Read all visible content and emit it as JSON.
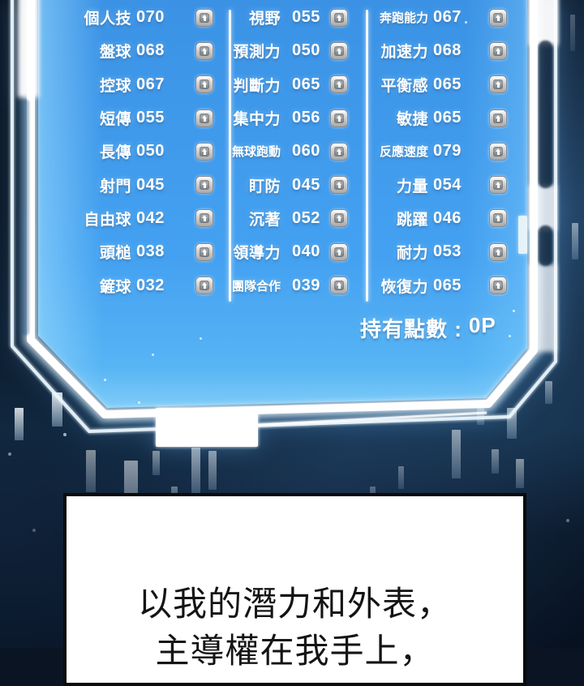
{
  "colors": {
    "panel_blue": "#42a0f0",
    "panel_deep_blue": "#3b92e5",
    "neon_white": "#ffffff",
    "background_navy": "#0b1b2e",
    "text_white": "#ffffff",
    "dialogue_text": "#141414"
  },
  "status_panel": {
    "columns": [
      {
        "name": "technical",
        "rows": [
          {
            "label": "個人技",
            "value": "070"
          },
          {
            "label": "盤球",
            "value": "068"
          },
          {
            "label": "控球",
            "value": "067"
          },
          {
            "label": "短傳",
            "value": "055"
          },
          {
            "label": "長傳",
            "value": "050"
          },
          {
            "label": "射門",
            "value": "045"
          },
          {
            "label": "自由球",
            "value": "042"
          },
          {
            "label": "頭槌",
            "value": "038"
          },
          {
            "label": "鏟球",
            "value": "032"
          }
        ]
      },
      {
        "name": "mental",
        "rows": [
          {
            "label": "視野",
            "value": "055"
          },
          {
            "label": "預測力",
            "value": "050"
          },
          {
            "label": "判斷力",
            "value": "065"
          },
          {
            "label": "集中力",
            "value": "056"
          },
          {
            "label": "無球跑動",
            "value": "060"
          },
          {
            "label": "盯防",
            "value": "045"
          },
          {
            "label": "沉著",
            "value": "052"
          },
          {
            "label": "領導力",
            "value": "040"
          },
          {
            "label": "團隊合作",
            "value": "039"
          }
        ]
      },
      {
        "name": "physical",
        "rows": [
          {
            "label": "奔跑能力",
            "value": "067"
          },
          {
            "label": "加速力",
            "value": "068"
          },
          {
            "label": "平衡感",
            "value": "065"
          },
          {
            "label": "敏捷",
            "value": "065"
          },
          {
            "label": "反應速度",
            "value": "079"
          },
          {
            "label": "力量",
            "value": "054"
          },
          {
            "label": "跳躍",
            "value": "046"
          },
          {
            "label": "耐力",
            "value": "053"
          },
          {
            "label": "恢復力",
            "value": "065"
          }
        ]
      }
    ],
    "points": {
      "label": "持有點數 :",
      "value": "0P"
    },
    "upgrade_icon": "up-arrow"
  },
  "dialogue": {
    "line1": "以我的潛力和外表，",
    "line2": "主導權在我手上，"
  }
}
